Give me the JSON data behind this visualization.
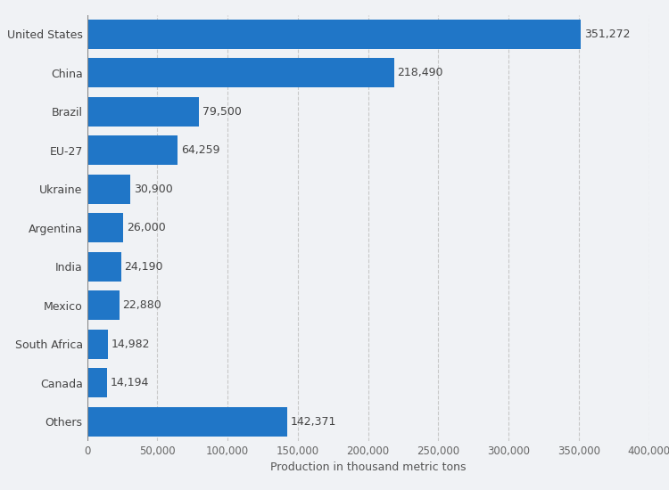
{
  "categories": [
    "United States",
    "China",
    "Brazil",
    "EU-27",
    "Ukraine",
    "Argentina",
    "India",
    "Mexico",
    "South Africa",
    "Canada",
    "Others"
  ],
  "values": [
    351272,
    218490,
    79500,
    64259,
    30900,
    26000,
    24190,
    22880,
    14982,
    14194,
    142371
  ],
  "bar_color": "#2076c7",
  "background_color": "#f0f2f5",
  "plot_bg_color": "#f0f2f5",
  "xlabel": "Production in thousand metric tons",
  "xlim": [
    0,
    400000
  ],
  "xticks": [
    0,
    50000,
    100000,
    150000,
    200000,
    250000,
    300000,
    350000,
    400000
  ],
  "xtick_labels": [
    "0",
    "50,000",
    "100,000",
    "150,000",
    "200,000",
    "250,000",
    "300,000",
    "350,000",
    "400,000"
  ],
  "label_fontsize": 9,
  "tick_fontsize": 8.5,
  "xlabel_fontsize": 9,
  "bar_height": 0.75,
  "value_labels": [
    "351,272",
    "218,490",
    "79,500",
    "64,259",
    "30,900",
    "26,000",
    "24,190",
    "22,880",
    "14,982",
    "14,194",
    "142,371"
  ]
}
